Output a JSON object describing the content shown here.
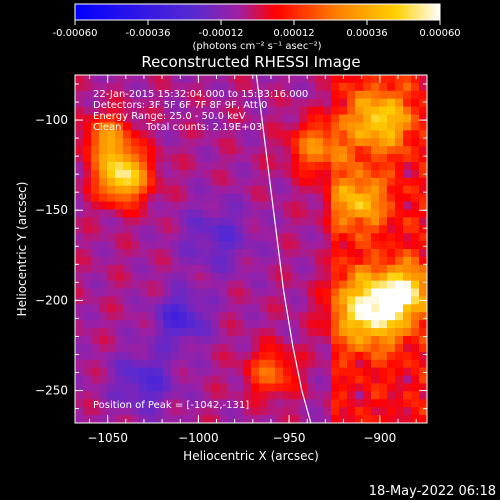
{
  "colorbar": {
    "ticks": [
      "-0.00060",
      "-0.00036",
      "-0.00012",
      "0.00012",
      "0.00036",
      "0.00060"
    ],
    "units": "(photons cm⁻² s⁻¹ asec⁻²)"
  },
  "header": {
    "title": "Reconstructed RHESSI Image",
    "time_range": "22-Jan-2015 15:32:04.000 to 15:33:16.000",
    "detectors": "Detectors: 3F 5F 6F 7F 8F 9F, Att 0",
    "energy_range": "Energy Range: 25.0 - 50.0 keV",
    "method": "Clean",
    "total_counts": "Total counts: 2.19E+03"
  },
  "peak_label": "Position of Peak = [-1042,-131]",
  "footer_timestamp": "18-May-2022 06:18",
  "chart_data": {
    "type": "heatmap",
    "title": "Reconstructed RHESSI Image",
    "xlabel": "Heliocentric X (arcsec)",
    "ylabel": "Heliocentric Y (arcsec)",
    "xlim": [
      -1068,
      -874
    ],
    "ylim": [
      -268,
      -75
    ],
    "xticks": [
      -1050,
      -1000,
      -950,
      -900
    ],
    "yticks": [
      -100,
      -150,
      -200,
      -250
    ],
    "zlim": [
      -0.0006,
      0.0006
    ],
    "colormap": [
      "#0000ff",
      "#5a2ad0",
      "#a01fa0",
      "#ff0000",
      "#ff8000",
      "#ffd000",
      "#ffffff"
    ],
    "limb_curve": {
      "x": [
        -968,
        -963,
        -958,
        -953,
        -948,
        -943,
        -938
      ],
      "y": [
        -75,
        -115,
        -155,
        -195,
        -225,
        -250,
        -268
      ]
    },
    "blobs": [
      {
        "x": -1042,
        "y": -131,
        "sigma": 10,
        "amp": 0.00058
      },
      {
        "x": -1050,
        "y": -110,
        "sigma": 9,
        "amp": 0.00034
      },
      {
        "x": -905,
        "y": -205,
        "sigma": 14,
        "amp": 0.00055
      },
      {
        "x": -885,
        "y": -195,
        "sigma": 10,
        "amp": 0.0004
      },
      {
        "x": -900,
        "y": -100,
        "sigma": 12,
        "amp": 0.00042
      },
      {
        "x": -912,
        "y": -145,
        "sigma": 11,
        "amp": 0.00036
      },
      {
        "x": -935,
        "y": -115,
        "sigma": 10,
        "amp": 0.00034
      },
      {
        "x": -960,
        "y": -240,
        "sigma": 9,
        "amp": 0.00028
      },
      {
        "x": -1010,
        "y": -210,
        "sigma": 10,
        "amp": -0.00022
      },
      {
        "x": -1030,
        "y": -245,
        "sigma": 12,
        "amp": -0.00018
      },
      {
        "x": -990,
        "y": -165,
        "sigma": 14,
        "amp": -0.00014
      }
    ]
  }
}
